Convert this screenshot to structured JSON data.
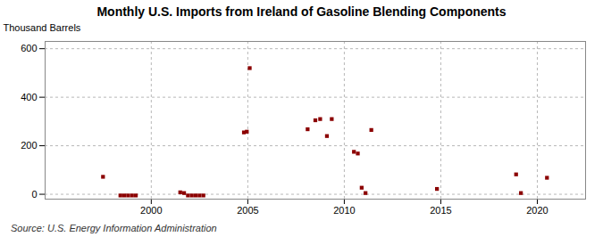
{
  "chart_data": {
    "type": "scatter",
    "title": "Monthly U.S. Imports from Ireland of Gasoline Blending Components",
    "ylabel": "Thousand Barrels",
    "annotations": [
      "Source: U.S. Energy Information Administration"
    ],
    "x": [
      1997.5,
      1998.4,
      1998.6,
      1998.8,
      1999.0,
      1999.2,
      2001.5,
      2001.7,
      2001.9,
      2002.1,
      2002.3,
      2002.5,
      2002.7,
      2004.8,
      2004.95,
      2005.1,
      2008.1,
      2008.5,
      2008.75,
      2009.1,
      2009.35,
      2010.5,
      2010.7,
      2010.9,
      2011.1,
      2011.4,
      2014.8,
      2018.9,
      2019.15,
      2020.5
    ],
    "values": [
      72,
      -5,
      -5,
      -5,
      -5,
      -5,
      8,
      5,
      -5,
      -5,
      -5,
      -5,
      -5,
      255,
      258,
      520,
      268,
      305,
      310,
      240,
      310,
      175,
      168,
      27,
      5,
      265,
      22,
      82,
      5,
      68
    ],
    "color": "#8b0000",
    "marker": "square",
    "xlim": [
      1994.5,
      2022.5
    ],
    "ylim": [
      -20,
      630
    ],
    "xticks": [
      2000,
      2005,
      2010,
      2015,
      2020
    ],
    "yticks": [
      0,
      200,
      400,
      600
    ],
    "grid": true
  }
}
